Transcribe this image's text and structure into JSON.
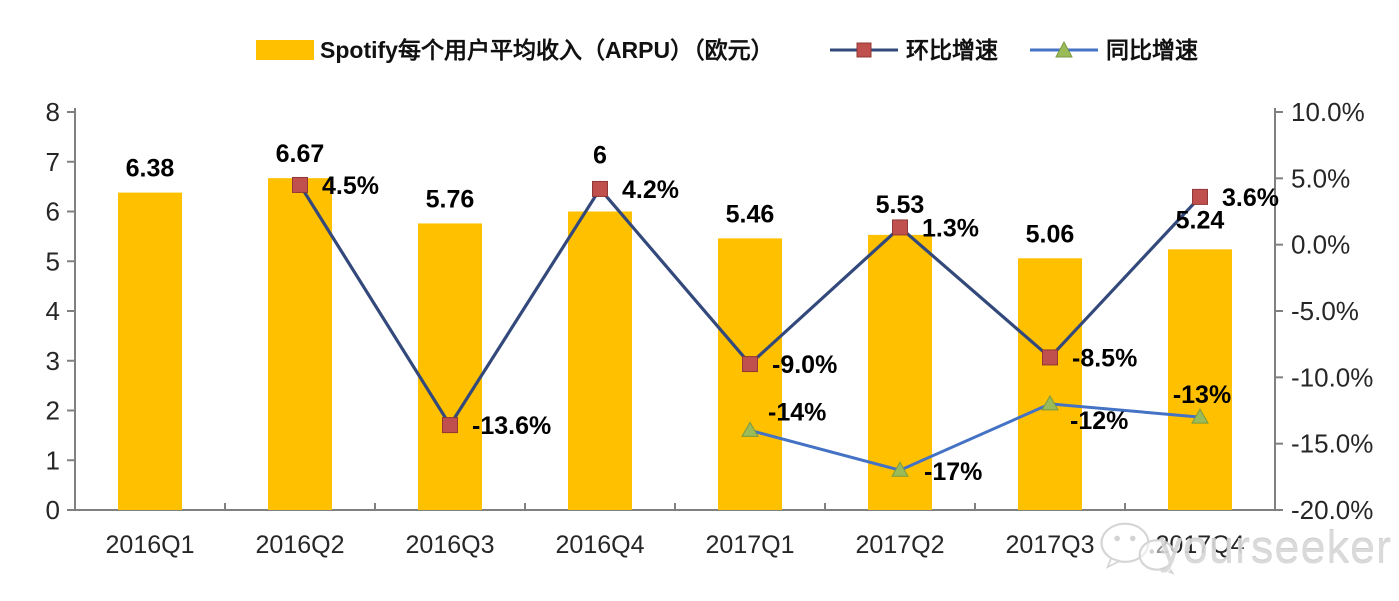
{
  "chart_data": {
    "type": "bar",
    "subtype": "bar-line-combo",
    "categories": [
      "2016Q1",
      "2016Q2",
      "2016Q3",
      "2016Q4",
      "2017Q1",
      "2017Q2",
      "2017Q3",
      "2017Q4"
    ],
    "series": [
      {
        "name": "Spotify每个用户平均收入（ARPU）（欧元）",
        "type": "bar",
        "axis": "left",
        "color": "#FFC000",
        "values": [
          6.38,
          6.67,
          5.76,
          6,
          5.46,
          5.53,
          5.06,
          5.24
        ],
        "labels": [
          "6.38",
          "6.67",
          "5.76",
          "6",
          "5.46",
          "5.53",
          "5.06",
          "5.24"
        ]
      },
      {
        "name": "环比增速",
        "type": "line",
        "axis": "right",
        "color": "#33497B",
        "marker": "square",
        "marker_color": "#C0504D",
        "values": [
          null,
          4.5,
          -13.6,
          4.2,
          -9.0,
          1.3,
          -8.5,
          3.6
        ],
        "labels": [
          null,
          "4.5%",
          "-13.6%",
          "4.2%",
          "-9.0%",
          "1.3%",
          "-8.5%",
          "3.6%"
        ]
      },
      {
        "name": "同比增速",
        "type": "line",
        "axis": "right",
        "color": "#4472C4",
        "marker": "triangle",
        "marker_color": "#9BBB59",
        "values": [
          null,
          null,
          null,
          null,
          -14,
          -17,
          -12,
          -13
        ],
        "labels": [
          null,
          null,
          null,
          null,
          "-14%",
          "-17%",
          "-12%",
          "-13%"
        ]
      }
    ],
    "left_axis": {
      "min": 0,
      "max": 8,
      "ticks": [
        "0",
        "1",
        "2",
        "3",
        "4",
        "5",
        "6",
        "7",
        "8"
      ]
    },
    "right_axis": {
      "min": -20,
      "max": 10,
      "ticks": [
        "10.0%",
        "5.0%",
        "0.0%",
        "-5.0%",
        "-10.0%",
        "-15.0%",
        "-20.0%"
      ]
    },
    "legend_position": "top",
    "grid": false,
    "axis_color": "#808080",
    "tick_label_color": "#262626",
    "data_label_color": "#000000"
  },
  "legend": {
    "bar_label": "Spotify每个用户平均收入（ARPU）（欧元）",
    "qoq_label": "环比增速",
    "yoy_label": "同比增速"
  },
  "watermark": {
    "text": "yourseeker"
  }
}
